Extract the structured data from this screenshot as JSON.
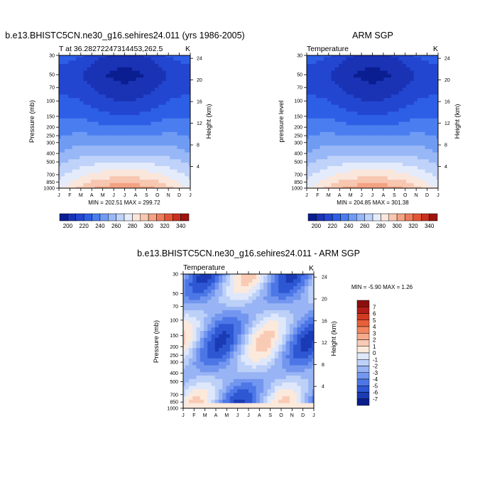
{
  "page": {
    "background": "#ffffff"
  },
  "chart_data": [
    {
      "type": "heatmap",
      "title": "b.e13.BHISTC5CN.ne30_g16.sehires24.011 (yrs 1986-2005)",
      "left_label": "T at 36.28272247314453,262.5",
      "right_label": "K",
      "ylabel": "Pressure (mb)",
      "ylabel_right": "Height (km)",
      "x": [
        "J",
        "F",
        "M",
        "A",
        "M",
        "J",
        "J",
        "A",
        "S",
        "O",
        "N",
        "D",
        "J"
      ],
      "y_pressure_ticks": [
        30,
        50,
        70,
        100,
        150,
        200,
        250,
        300,
        400,
        500,
        700,
        850,
        1000
      ],
      "y_height_ticks": [
        24,
        20,
        16,
        12,
        8,
        4
      ],
      "ylim": [
        30,
        1000
      ],
      "y_scale": "log",
      "minmax_text": "MIN = 202.51  MAX = 299.72",
      "colorbar": {
        "orientation": "horizontal",
        "labels": [
          "200",
          "220",
          "240",
          "260",
          "280",
          "300",
          "320",
          "340"
        ],
        "colors": [
          "#0a1e91",
          "#1a33b5",
          "#2346d0",
          "#2d5fe6",
          "#4a7ef0",
          "#6f9bf3",
          "#98b7f6",
          "#bfd2f9",
          "#e4ecfb",
          "#fbe6dc",
          "#f8c7b0",
          "#f4a283",
          "#ee7b5b",
          "#e45436",
          "#c9301f",
          "#9d1410"
        ]
      },
      "z_min": 202.51,
      "z_max": 299.72
    },
    {
      "type": "heatmap",
      "title": "ARM SGP",
      "left_label": "Temperature",
      "right_label": "K",
      "ylabel": "pressure level",
      "ylabel_right": "Height (km)",
      "x": [
        "J",
        "F",
        "M",
        "A",
        "M",
        "J",
        "J",
        "A",
        "S",
        "O",
        "N",
        "D",
        "J"
      ],
      "y_pressure_ticks": [
        30,
        50,
        70,
        100,
        150,
        200,
        250,
        300,
        400,
        500,
        700,
        850,
        1000
      ],
      "y_height_ticks": [
        24,
        20,
        16,
        12,
        8,
        4
      ],
      "ylim": [
        30,
        1000
      ],
      "y_scale": "log",
      "minmax_text": "MIN = 204.85  MAX = 301.38",
      "colorbar": {
        "orientation": "horizontal",
        "labels": [
          "200",
          "220",
          "240",
          "260",
          "280",
          "300",
          "320",
          "340"
        ],
        "colors": [
          "#0a1e91",
          "#1a33b5",
          "#2346d0",
          "#2d5fe6",
          "#4a7ef0",
          "#6f9bf3",
          "#98b7f6",
          "#bfd2f9",
          "#e4ecfb",
          "#fbe6dc",
          "#f8c7b0",
          "#f4a283",
          "#ee7b5b",
          "#e45436",
          "#c9301f",
          "#9d1410"
        ]
      },
      "z_min": 204.85,
      "z_max": 301.38
    },
    {
      "type": "heatmap",
      "title": "b.e13.BHISTC5CN.ne30_g16.sehires24.011 - ARM SGP",
      "left_label": "Temperature",
      "right_label": "K",
      "ylabel": "Pressure (mb)",
      "ylabel_right": "Height (km)",
      "x": [
        "J",
        "F",
        "M",
        "A",
        "M",
        "J",
        "J",
        "A",
        "S",
        "O",
        "N",
        "D",
        "J"
      ],
      "y_pressure_ticks": [
        30,
        50,
        70,
        100,
        150,
        200,
        250,
        300,
        400,
        500,
        700,
        850,
        1000
      ],
      "y_height_ticks": [
        24,
        20,
        16,
        12,
        8,
        4
      ],
      "ylim": [
        30,
        1000
      ],
      "y_scale": "log",
      "minmax_text": "MIN =  -5.90  MAX =   1.26",
      "colorbar": {
        "orientation": "vertical",
        "labels": [
          "7",
          "6",
          "5",
          "4",
          "3",
          "2",
          "1",
          "0",
          "-1",
          "-2",
          "-3",
          "-4",
          "-5",
          "-6",
          "-7"
        ],
        "colors": [
          "#8a0e0e",
          "#b41d17",
          "#d23b22",
          "#e8603a",
          "#f28660",
          "#f6aa8b",
          "#f9cbb5",
          "#fbe9dc",
          "#dfe8fb",
          "#bcd0f8",
          "#98b4f4",
          "#7396ef",
          "#4d77e6",
          "#2e57d3",
          "#1b3bb5",
          "#0b1d8b"
        ]
      },
      "z_min": -5.9,
      "z_max": 1.26
    }
  ]
}
